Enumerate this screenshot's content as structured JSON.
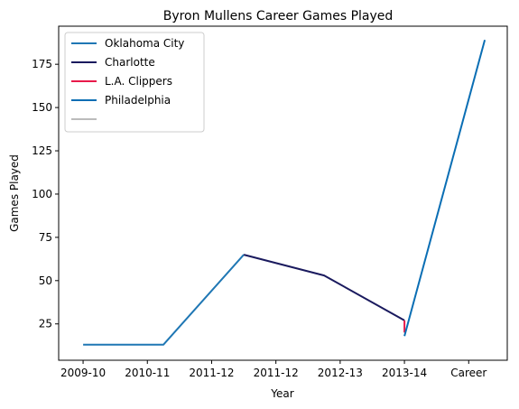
{
  "chart_data": {
    "type": "line",
    "title": "Byron Mullens Career Games Played",
    "xlabel": "Year",
    "ylabel": "Games Played",
    "x_ticks": [
      "2009-10",
      "2010-11",
      "2011-12",
      "2011-12",
      "2012-13",
      "2013-14",
      "Career"
    ],
    "y_ticks": [
      25,
      50,
      75,
      100,
      125,
      150,
      175
    ],
    "ylim": [
      4,
      197
    ],
    "xlim": [
      -0.38,
      6.6
    ],
    "grid": false,
    "legend_position": "top-left",
    "series": [
      {
        "name": "Oklahoma City",
        "color": "#1f77b4",
        "points": [
          {
            "x": 0,
            "y": 13
          },
          {
            "x": 1.25,
            "y": 13
          },
          {
            "x": 2.5,
            "y": 65
          }
        ]
      },
      {
        "name": "Charlotte",
        "color": "#1a1a5e",
        "points": [
          {
            "x": 2.5,
            "y": 65
          },
          {
            "x": 3.75,
            "y": 53
          },
          {
            "x": 5.0,
            "y": 27
          }
        ]
      },
      {
        "name": "L.A. Clippers",
        "color": "#e8194a",
        "points": [
          {
            "x": 5.0,
            "y": 27
          },
          {
            "x": 5.0,
            "y": 20
          }
        ]
      },
      {
        "name": "Philadelphia",
        "color": "#0a6eb4",
        "points": [
          {
            "x": 5.0,
            "y": 18
          },
          {
            "x": 6.25,
            "y": 189
          }
        ]
      },
      {
        "name": "",
        "color": "#bbbbbb",
        "points": []
      }
    ]
  }
}
